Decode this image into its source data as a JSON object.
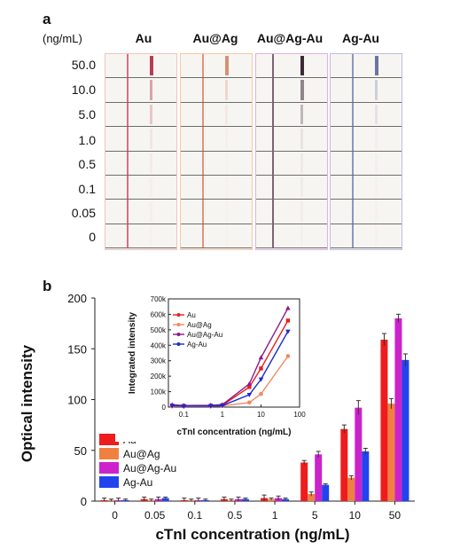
{
  "panel_a": {
    "letter": "a",
    "unit": "(ng/mL)",
    "columns": [
      {
        "label": "Au",
        "color": "#f2c2bf",
        "line_color": "#d94a6a",
        "band_color": "#b73d55"
      },
      {
        "label": "Au@Ag",
        "color": "#f4c9a4",
        "line_color": "#e07a5a",
        "band_color": "#c8643f"
      },
      {
        "label": "Au@Ag-Au",
        "color": "#e1b0e3",
        "line_color": "#5d3f55",
        "band_color": "#3a2a35"
      },
      {
        "label": "Ag-Au",
        "color": "#c3b9e8",
        "line_color": "#6f7fb8",
        "band_color": "#4c5f9a"
      }
    ],
    "rows": [
      "50.0",
      "10.0",
      "5.0",
      "1.0",
      "0.5",
      "0.1",
      "0.05",
      "0"
    ],
    "test_line_intensity": [
      [
        1.0,
        0.45,
        0.25,
        0.08,
        0.05,
        0.03,
        0.03,
        0.02
      ],
      [
        0.7,
        0.2,
        0.08,
        0.03,
        0.02,
        0.02,
        0.02,
        0.02
      ],
      [
        1.0,
        0.55,
        0.3,
        0.08,
        0.05,
        0.04,
        0.03,
        0.02
      ],
      [
        0.85,
        0.25,
        0.12,
        0.04,
        0.03,
        0.02,
        0.02,
        0.02
      ]
    ]
  },
  "chart_data": {
    "type": "bar",
    "panel_letter": "b",
    "categories": [
      "0",
      "0.05",
      "0.1",
      "0.5",
      "1",
      "5",
      "10",
      "50"
    ],
    "series": [
      {
        "name": "Au",
        "color": "#ee1c1c",
        "values": [
          1,
          2,
          1,
          2,
          3,
          38,
          71,
          159
        ],
        "errors": [
          2,
          2,
          2,
          2,
          3,
          2,
          4,
          6
        ]
      },
      {
        "name": "Au@Ag",
        "color": "#f08040",
        "values": [
          1,
          1,
          1,
          1,
          2,
          7,
          23,
          96
        ],
        "errors": [
          1,
          1,
          1,
          1,
          1,
          2,
          2,
          5
        ]
      },
      {
        "name": "Au@Ag-Au",
        "color": "#cc22cc",
        "values": [
          1,
          2,
          1,
          2,
          3,
          46,
          92,
          180
        ],
        "errors": [
          2,
          2,
          2,
          2,
          2,
          3,
          7,
          4
        ]
      },
      {
        "name": "Ag-Au",
        "color": "#2244ee",
        "values": [
          1,
          3,
          1,
          2,
          2,
          16,
          49,
          139
        ],
        "errors": [
          1,
          1,
          1,
          1,
          1,
          1,
          3,
          6
        ]
      }
    ],
    "xlabel": "cTnI concentration (ng/mL)",
    "ylabel": "Optical intensity",
    "ylim": [
      0,
      200
    ],
    "yticks": [
      0,
      50,
      100,
      150,
      200
    ],
    "legend": "lower-left",
    "inset": {
      "type": "line",
      "xscale": "log",
      "x": [
        0.05,
        0.1,
        0.5,
        1,
        5,
        10,
        50
      ],
      "xticks": [
        0.1,
        1,
        10,
        100
      ],
      "xtick_labels": [
        "0.1",
        "1",
        "10",
        "100"
      ],
      "xlabel": "cTnI concentration (ng/mL)",
      "ylabel": "Integrated intensity",
      "ylim": [
        0,
        700000
      ],
      "yticks": [
        0,
        100000,
        200000,
        300000,
        400000,
        500000,
        600000,
        700000
      ],
      "ytick_labels": [
        "0",
        "100k",
        "200k",
        "300k",
        "400k",
        "500k",
        "600k",
        "700k"
      ],
      "legend": "upper-left",
      "series": [
        {
          "name": "Au",
          "color": "#ee1c1c",
          "marker": "square",
          "values": [
            10000,
            8000,
            9000,
            12000,
            130000,
            250000,
            560000
          ]
        },
        {
          "name": "Au@Ag",
          "color": "#f08a60",
          "marker": "circle",
          "values": [
            5000,
            4000,
            5000,
            8000,
            30000,
            85000,
            330000
          ]
        },
        {
          "name": "Au@Ag-Au",
          "color": "#8a1a8a",
          "marker": "triangle-up",
          "values": [
            15000,
            10000,
            12000,
            16000,
            150000,
            320000,
            640000
          ]
        },
        {
          "name": "Ag-Au",
          "color": "#1a2acc",
          "marker": "triangle-down",
          "values": [
            8000,
            6000,
            7000,
            10000,
            80000,
            180000,
            490000
          ]
        }
      ]
    }
  }
}
